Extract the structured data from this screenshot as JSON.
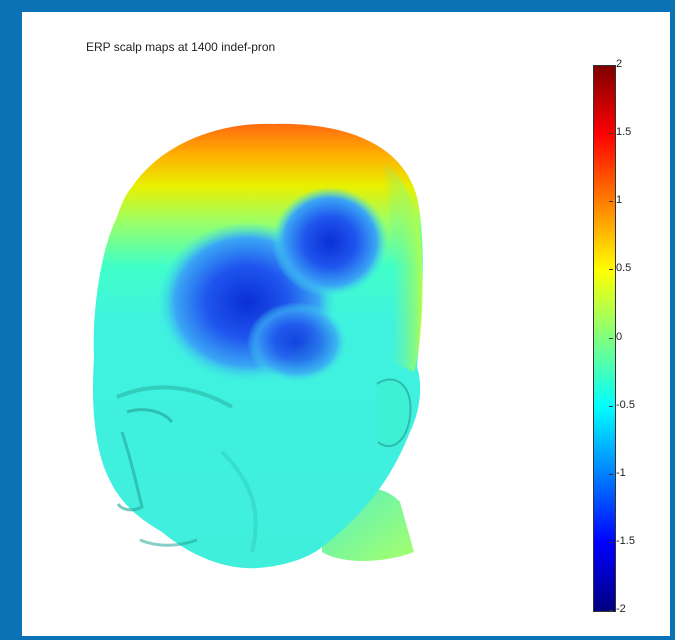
{
  "chart_data": {
    "type": "heatmap",
    "title": "ERP scalp maps at 1400 indef-pron",
    "colorbar": {
      "min": -2,
      "max": 2,
      "ticks": [
        "2",
        "1.5",
        "1",
        "0.5",
        "0",
        "-0.5",
        "-1",
        "-1.5",
        "-2"
      ],
      "colormap": "jet"
    },
    "surface": "3d-head",
    "colors": {
      "frame": "#0a72b5",
      "background": "#ffffff"
    }
  }
}
